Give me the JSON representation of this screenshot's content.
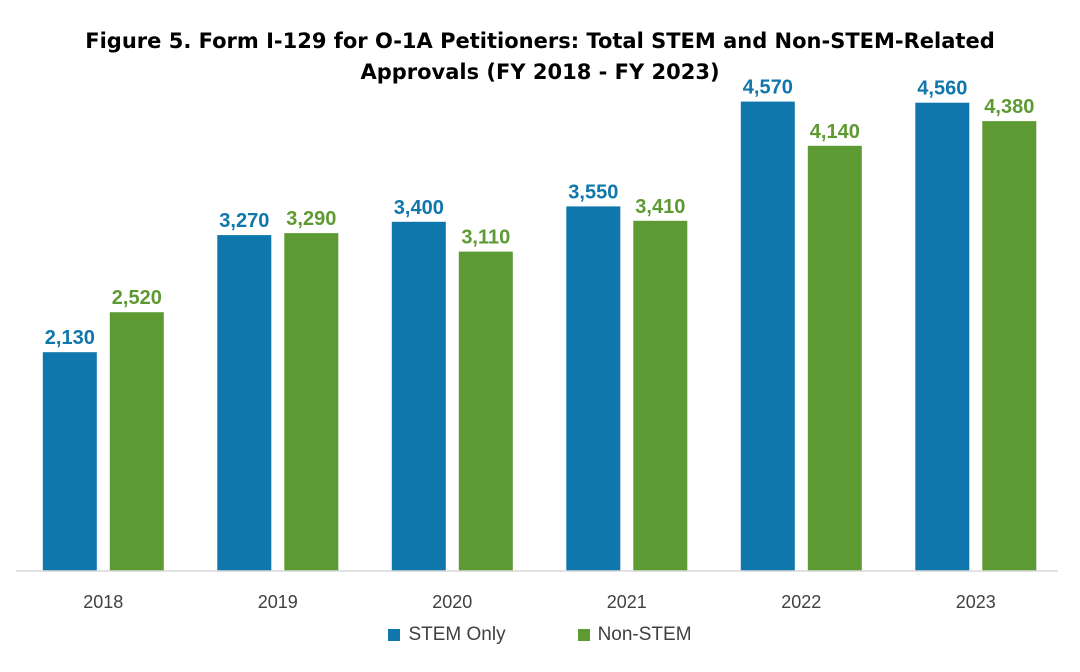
{
  "chart_data": {
    "type": "bar",
    "title": "Figure 5. Form I-129 for O-1A Petitioners: Total STEM and Non-STEM-Related Approvals (FY 2018 - FY 2023)",
    "title_lines": [
      "Figure 5. Form I-129 for O-1A Petitioners:  Total STEM and Non-STEM-Related",
      "Approvals (FY 2018 - FY 2023)"
    ],
    "xlabel": "",
    "ylabel": "",
    "ylim": [
      0,
      4800
    ],
    "grid": false,
    "legend_position": "bottom",
    "categories": [
      "2018",
      "2019",
      "2020",
      "2021",
      "2022",
      "2023"
    ],
    "series": [
      {
        "name": "STEM Only",
        "color": "#0F77AB",
        "values": [
          2130,
          3270,
          3400,
          3550,
          4570,
          4560
        ],
        "labels": [
          "2,130",
          "3,270",
          "3,400",
          "3,550",
          "4,570",
          "4,560"
        ]
      },
      {
        "name": "Non-STEM",
        "color": "#5E9A33",
        "values": [
          2520,
          3290,
          3110,
          3410,
          4140,
          4380
        ],
        "labels": [
          "2,520",
          "3,290",
          "3,110",
          "3,410",
          "4,140",
          "4,380"
        ]
      }
    ]
  }
}
